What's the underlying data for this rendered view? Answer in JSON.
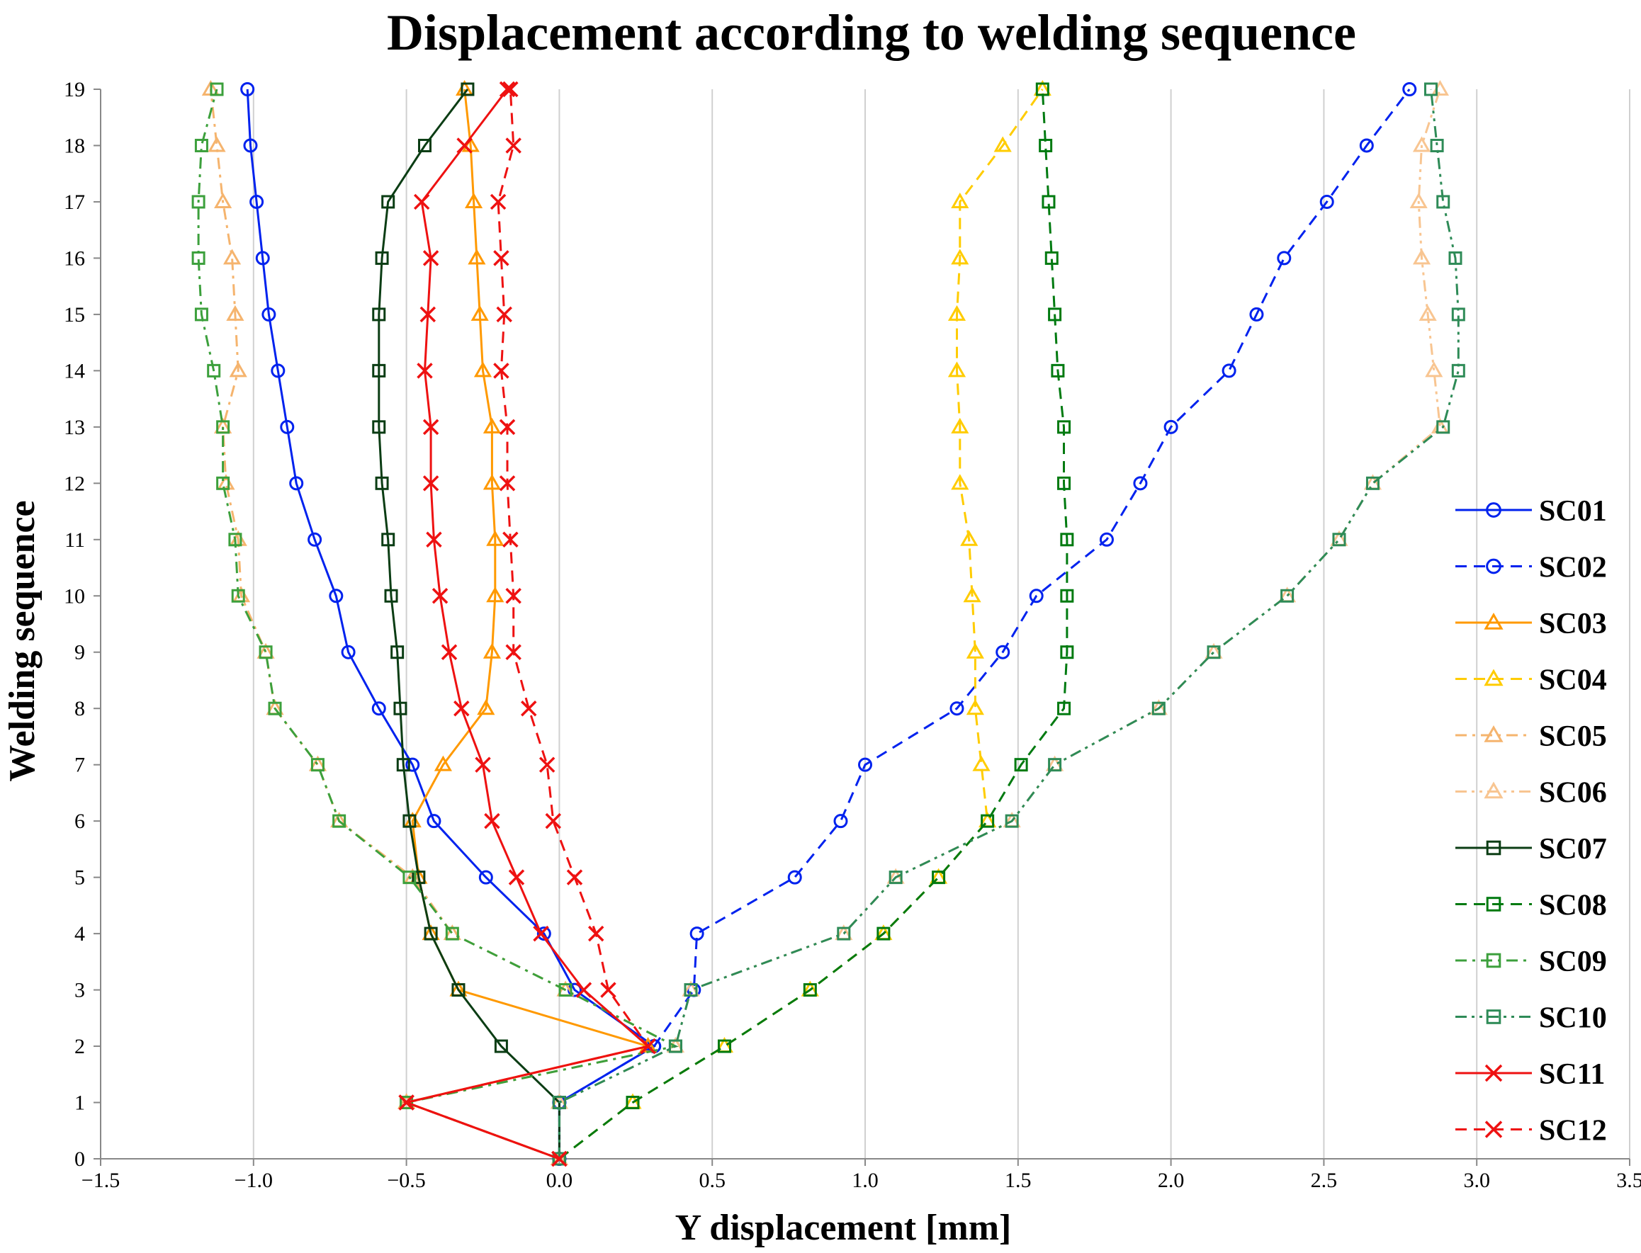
{
  "chart_data": {
    "type": "line",
    "title": "Displacement according to welding sequence",
    "xlabel": "Y displacement [mm]",
    "ylabel": "Welding sequence",
    "xlim": [
      -1.5,
      3.5
    ],
    "ylim": [
      0,
      19
    ],
    "x_ticks": [
      "−1.5",
      "−1.0",
      "−0.5",
      "0.0",
      "0.5",
      "1.0",
      "1.5",
      "2.0",
      "2.5",
      "3.0",
      "3.5"
    ],
    "x_tick_values": [
      -1.5,
      -1.0,
      -0.5,
      0.0,
      0.5,
      1.0,
      1.5,
      2.0,
      2.5,
      3.0,
      3.5
    ],
    "y_ticks": [
      "0",
      "1",
      "2",
      "3",
      "4",
      "5",
      "6",
      "7",
      "8",
      "9",
      "10",
      "11",
      "12",
      "13",
      "14",
      "15",
      "16",
      "17",
      "18",
      "19"
    ],
    "grid": "vertical",
    "legend_position": "right",
    "series": [
      {
        "name": "SC01",
        "color": "#0022ee",
        "dash": "solid",
        "marker": "circle",
        "open_marker": true,
        "x": [
          0.0,
          0.0,
          0.31,
          0.05,
          -0.05,
          -0.24,
          -0.41,
          -0.48,
          -0.59,
          -0.69,
          -0.73,
          -0.8,
          -0.86,
          -0.89,
          -0.92,
          -0.95,
          -0.97,
          -0.99,
          -1.01,
          -1.02
        ],
        "y": [
          0,
          1,
          2,
          3,
          4,
          5,
          6,
          7,
          8,
          9,
          10,
          11,
          12,
          13,
          14,
          15,
          16,
          17,
          18,
          19
        ]
      },
      {
        "name": "SC02",
        "color": "#0022ee",
        "dash": "dash",
        "marker": "circle",
        "open_marker": true,
        "x": [
          0.0,
          0.0,
          0.31,
          0.44,
          0.45,
          0.77,
          0.92,
          1.0,
          1.3,
          1.45,
          1.56,
          1.79,
          1.9,
          2.0,
          2.19,
          2.28,
          2.37,
          2.51,
          2.64,
          2.78
        ],
        "y": [
          0,
          1,
          2,
          3,
          4,
          5,
          6,
          7,
          8,
          9,
          10,
          11,
          12,
          13,
          14,
          15,
          16,
          17,
          18,
          19
        ]
      },
      {
        "name": "SC03",
        "color": "#ff9900",
        "dash": "solid",
        "marker": "triangle",
        "open_marker": true,
        "x": [
          0.0,
          -0.5,
          0.29,
          -0.33,
          -0.42,
          -0.46,
          -0.48,
          -0.38,
          -0.24,
          -0.22,
          -0.21,
          -0.21,
          -0.22,
          -0.22,
          -0.25,
          -0.26,
          -0.27,
          -0.28,
          -0.29,
          -0.31
        ],
        "y": [
          0,
          1,
          2,
          3,
          4,
          5,
          6,
          7,
          8,
          9,
          10,
          11,
          12,
          13,
          14,
          15,
          16,
          17,
          18,
          19
        ]
      },
      {
        "name": "SC04",
        "color": "#ffcc00",
        "dash": "dash",
        "marker": "triangle",
        "open_marker": true,
        "x": [
          0.0,
          0.24,
          0.54,
          0.82,
          1.06,
          1.24,
          1.4,
          1.38,
          1.36,
          1.36,
          1.35,
          1.34,
          1.31,
          1.31,
          1.3,
          1.3,
          1.31,
          1.31,
          1.45,
          1.58
        ],
        "y": [
          0,
          1,
          2,
          3,
          4,
          5,
          6,
          7,
          8,
          9,
          10,
          11,
          12,
          13,
          14,
          15,
          16,
          17,
          18,
          19
        ]
      },
      {
        "name": "SC05",
        "color": "#f5b46e",
        "dash": "dashdot",
        "marker": "triangle",
        "open_marker": true,
        "x": [
          0.0,
          -0.5,
          0.38,
          0.02,
          -0.35,
          -0.48,
          -0.72,
          -0.79,
          -0.93,
          -0.96,
          -1.04,
          -1.05,
          -1.09,
          -1.1,
          -1.05,
          -1.06,
          -1.07,
          -1.1,
          -1.12,
          -1.14
        ],
        "y": [
          0,
          1,
          2,
          3,
          4,
          5,
          6,
          7,
          8,
          9,
          10,
          11,
          12,
          13,
          14,
          15,
          16,
          17,
          18,
          19
        ]
      },
      {
        "name": "SC06",
        "color": "#f8c591",
        "dash": "dashdotdot",
        "marker": "triangle",
        "open_marker": true,
        "x": [
          0.0,
          0.0,
          0.38,
          0.43,
          0.93,
          1.1,
          1.48,
          1.62,
          1.96,
          2.14,
          2.38,
          2.55,
          2.66,
          2.88,
          2.86,
          2.84,
          2.82,
          2.81,
          2.82,
          2.88
        ],
        "y": [
          0,
          1,
          2,
          3,
          4,
          5,
          6,
          7,
          8,
          9,
          10,
          11,
          12,
          13,
          14,
          15,
          16,
          17,
          18,
          19
        ]
      },
      {
        "name": "SC07",
        "color": "#0b3d14",
        "dash": "solid",
        "marker": "square",
        "open_marker": true,
        "x": [
          0.0,
          0.0,
          -0.19,
          -0.33,
          -0.42,
          -0.46,
          -0.49,
          -0.51,
          -0.52,
          -0.53,
          -0.55,
          -0.56,
          -0.58,
          -0.59,
          -0.59,
          -0.59,
          -0.58,
          -0.56,
          -0.44,
          -0.3
        ],
        "y": [
          0,
          1,
          2,
          3,
          4,
          5,
          6,
          7,
          8,
          9,
          10,
          11,
          12,
          13,
          14,
          15,
          16,
          17,
          18,
          19
        ]
      },
      {
        "name": "SC08",
        "color": "#007a10",
        "dash": "dash",
        "marker": "square",
        "open_marker": true,
        "x": [
          0.0,
          0.24,
          0.54,
          0.82,
          1.06,
          1.24,
          1.4,
          1.51,
          1.65,
          1.66,
          1.66,
          1.66,
          1.65,
          1.65,
          1.63,
          1.62,
          1.61,
          1.6,
          1.59,
          1.58
        ],
        "y": [
          0,
          1,
          2,
          3,
          4,
          5,
          6,
          7,
          8,
          9,
          10,
          11,
          12,
          13,
          14,
          15,
          16,
          17,
          18,
          19
        ]
      },
      {
        "name": "SC09",
        "color": "#3ca03c",
        "dash": "dashdot",
        "marker": "square",
        "open_marker": true,
        "x": [
          0.0,
          -0.5,
          0.38,
          0.02,
          -0.35,
          -0.49,
          -0.72,
          -0.79,
          -0.93,
          -0.96,
          -1.05,
          -1.06,
          -1.1,
          -1.1,
          -1.13,
          -1.17,
          -1.18,
          -1.18,
          -1.17,
          -1.12
        ],
        "y": [
          0,
          1,
          2,
          3,
          4,
          5,
          6,
          7,
          8,
          9,
          10,
          11,
          12,
          13,
          14,
          15,
          16,
          17,
          18,
          19
        ]
      },
      {
        "name": "SC10",
        "color": "#2e8b57",
        "dash": "dashdotdot",
        "marker": "square",
        "open_marker": true,
        "x": [
          0.0,
          0.0,
          0.38,
          0.43,
          0.93,
          1.1,
          1.48,
          1.62,
          1.96,
          2.14,
          2.38,
          2.55,
          2.66,
          2.89,
          2.94,
          2.94,
          2.93,
          2.89,
          2.87,
          2.85
        ],
        "y": [
          0,
          1,
          2,
          3,
          4,
          5,
          6,
          7,
          8,
          9,
          10,
          11,
          12,
          13,
          14,
          15,
          16,
          17,
          18,
          19
        ]
      },
      {
        "name": "SC11",
        "color": "#ee1111",
        "dash": "solid",
        "marker": "x",
        "open_marker": false,
        "x": [
          0.0,
          -0.5,
          0.29,
          0.08,
          -0.06,
          -0.14,
          -0.22,
          -0.25,
          -0.32,
          -0.36,
          -0.39,
          -0.41,
          -0.42,
          -0.42,
          -0.44,
          -0.43,
          -0.42,
          -0.45,
          -0.31,
          -0.17
        ],
        "y": [
          0,
          1,
          2,
          3,
          4,
          5,
          6,
          7,
          8,
          9,
          10,
          11,
          12,
          13,
          14,
          15,
          16,
          17,
          18,
          19
        ]
      },
      {
        "name": "SC12",
        "color": "#ee1111",
        "dash": "dash",
        "marker": "x",
        "open_marker": false,
        "x": [
          0.0,
          -0.5,
          0.29,
          0.16,
          0.12,
          0.05,
          -0.02,
          -0.04,
          -0.1,
          -0.15,
          -0.15,
          -0.16,
          -0.17,
          -0.17,
          -0.19,
          -0.18,
          -0.19,
          -0.2,
          -0.15,
          -0.16
        ],
        "y": [
          0,
          1,
          2,
          3,
          4,
          5,
          6,
          7,
          8,
          9,
          10,
          11,
          12,
          13,
          14,
          15,
          16,
          17,
          18,
          19
        ]
      }
    ]
  }
}
